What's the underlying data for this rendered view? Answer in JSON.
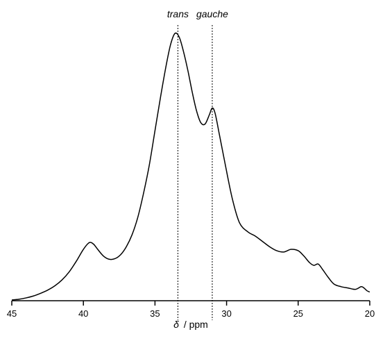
{
  "chart_data": {
    "type": "line",
    "title": "",
    "xlabel_symbol": "δ",
    "xlabel_unit": "/ ppm",
    "ylabel": "",
    "xlim": [
      45,
      20
    ],
    "x_reversed": true,
    "ylim": [
      0,
      1
    ],
    "x_ticks": [
      45,
      40,
      35,
      30,
      25,
      20
    ],
    "x_tick_labels": [
      "45",
      "40",
      "35",
      "30",
      "25",
      "20"
    ],
    "grid": false,
    "legend": "none",
    "line_color": "#000000",
    "annotations": [
      {
        "label": "trans",
        "x": 33.4,
        "style": "dotted-vertical"
      },
      {
        "label": "gauche",
        "x": 31.0,
        "style": "dotted-vertical"
      }
    ],
    "series": [
      {
        "x": [
          45,
          44.5,
          44,
          43.5,
          43,
          42.5,
          42,
          41.5,
          41,
          40.5,
          40,
          39.6,
          39.3,
          39,
          38.6,
          38.2,
          37.8,
          37.4,
          37,
          36.6,
          36.2,
          35.8,
          35.4,
          35,
          34.6,
          34.2,
          33.9,
          33.6,
          33.3,
          33.0,
          32.7,
          32.4,
          32.1,
          31.8,
          31.5,
          31.2,
          31.0,
          30.8,
          30.5,
          30.1,
          29.6,
          29.1,
          28.5,
          28.0,
          27.5,
          27.0,
          26.5,
          26.0,
          25.5,
          25.0,
          24.6,
          24.2,
          23.9,
          23.6,
          23.3,
          22.9,
          22.5,
          22.0,
          21.5,
          21.0,
          20.6,
          20.4,
          20.2,
          20.0
        ],
        "y": [
          0.0,
          0.003,
          0.008,
          0.015,
          0.025,
          0.037,
          0.053,
          0.075,
          0.105,
          0.145,
          0.19,
          0.215,
          0.21,
          0.19,
          0.165,
          0.153,
          0.155,
          0.17,
          0.2,
          0.245,
          0.31,
          0.4,
          0.505,
          0.635,
          0.765,
          0.885,
          0.96,
          1.0,
          0.985,
          0.93,
          0.86,
          0.78,
          0.71,
          0.665,
          0.66,
          0.695,
          0.72,
          0.7,
          0.62,
          0.51,
          0.38,
          0.29,
          0.255,
          0.24,
          0.22,
          0.2,
          0.185,
          0.18,
          0.19,
          0.185,
          0.165,
          0.14,
          0.13,
          0.135,
          0.115,
          0.085,
          0.06,
          0.05,
          0.045,
          0.04,
          0.05,
          0.045,
          0.035,
          0.03
        ]
      }
    ]
  }
}
